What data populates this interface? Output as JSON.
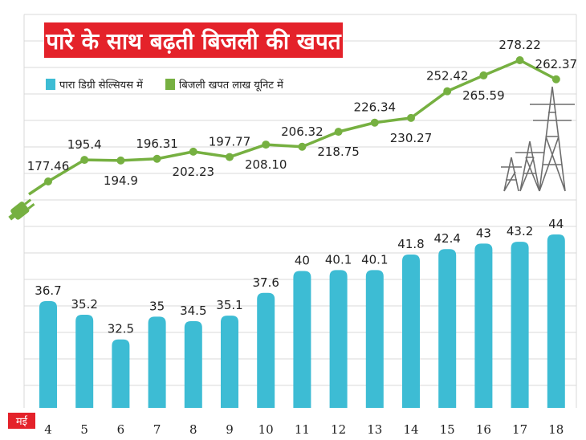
{
  "chart_data": {
    "type": "bar+line",
    "title": "पारे के साथ बढ़ती बिजली की खपत",
    "x_unit_label": "मई",
    "categories": [
      "4",
      "5",
      "6",
      "7",
      "8",
      "9",
      "10",
      "11",
      "12",
      "13",
      "14",
      "15",
      "16",
      "17",
      "18"
    ],
    "series": [
      {
        "name": "पारा डिग्री सेल्सियस में",
        "type": "bar",
        "values": [
          36.7,
          35.2,
          32.5,
          35,
          34.5,
          35.1,
          37.6,
          40,
          40.1,
          40.1,
          41.8,
          42.4,
          43,
          43.2,
          44
        ],
        "labels": [
          "36.7",
          "35.2",
          "32.5",
          "35",
          "34.5",
          "35.1",
          "37.6",
          "40",
          "40.1",
          "40.1",
          "41.8",
          "42.4",
          "43",
          "43.2",
          "44"
        ]
      },
      {
        "name": "बिजली खपत लाख यूनिट में",
        "type": "line",
        "values": [
          177.46,
          195.4,
          194.9,
          196.31,
          202.23,
          197.77,
          208.1,
          206.32,
          218.75,
          226.34,
          230.27,
          252.42,
          265.59,
          278.22,
          262.37
        ],
        "labels": [
          "177.46",
          "195.4",
          "194.9",
          "196.31",
          "202.23",
          "197.77",
          "208.10",
          "206.32",
          "218.75",
          "226.34",
          "230.27",
          "252.42",
          "265.59",
          "278.22",
          "262.37"
        ]
      }
    ],
    "grid": true,
    "legend_position": "top-left",
    "colors": {
      "bar": "#3dbcd4",
      "line": "#76b041",
      "title_bg": "#e4222a",
      "title_text": "#ffffff",
      "grid": "#d9d9d9"
    }
  },
  "icons": {
    "plug": "plug-icon",
    "tower": "transmission-tower-icon"
  }
}
